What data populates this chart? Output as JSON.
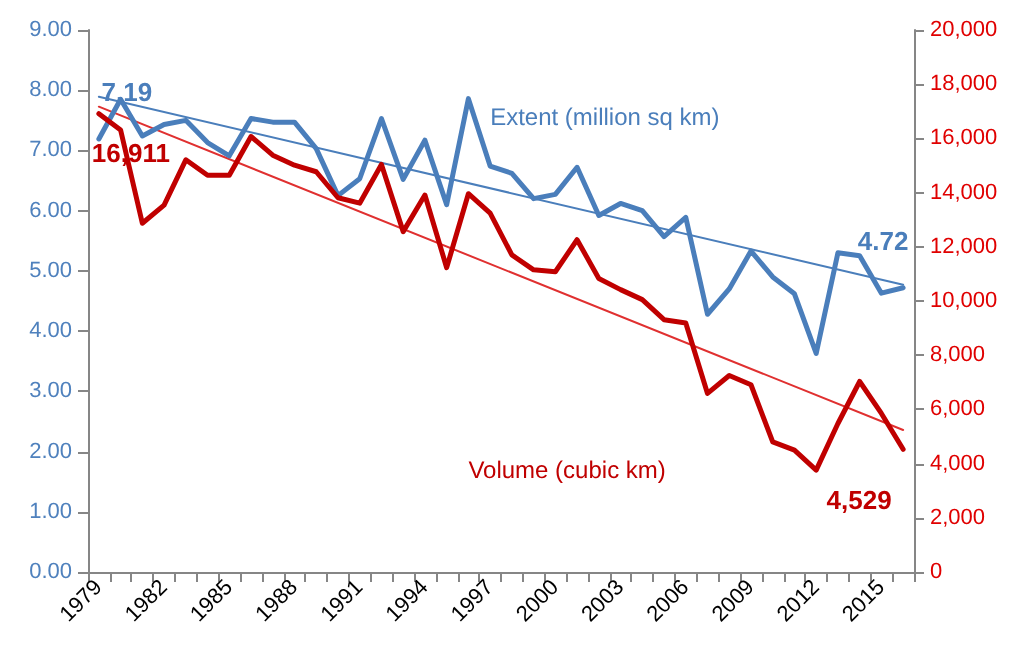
{
  "chart_data": {
    "type": "line",
    "categories": [
      "1979",
      null,
      null,
      "1982",
      null,
      null,
      "1985",
      null,
      null,
      "1988",
      null,
      null,
      "1991",
      null,
      null,
      "1994",
      null,
      null,
      "1997",
      null,
      null,
      "2000",
      null,
      null,
      "2003",
      null,
      null,
      "2006",
      null,
      null,
      "2009",
      null,
      null,
      "2012",
      null,
      null,
      "2015",
      null
    ],
    "series": [
      {
        "name": "Extent (million sq km)",
        "color": "#4a7ebb",
        "values": [
          7.19,
          7.85,
          7.24,
          7.43,
          7.5,
          7.13,
          6.91,
          7.53,
          7.47,
          7.47,
          7.03,
          6.25,
          6.53,
          7.53,
          6.52,
          7.17,
          6.1,
          7.86,
          6.74,
          6.62,
          6.2,
          6.27,
          6.72,
          5.92,
          6.12,
          6.0,
          5.57,
          5.89,
          4.28,
          4.7,
          5.33,
          4.9,
          4.62,
          3.63,
          5.3,
          5.25,
          4.63,
          4.72
        ],
        "value_labels": [
          "7.19",
          null,
          null,
          null,
          null,
          null,
          null,
          null,
          null,
          null,
          null,
          null,
          null,
          null,
          null,
          null,
          null,
          null,
          null,
          null,
          null,
          null,
          null,
          null,
          null,
          null,
          null,
          null,
          null,
          null,
          null,
          null,
          null,
          null,
          null,
          null,
          null,
          "4.72"
        ]
      },
      {
        "name": "Volume (cubic km)",
        "color": "#c00000",
        "axis": "y2",
        "values": [
          16911,
          16310,
          12870,
          13540,
          15210,
          14640,
          14640,
          16070,
          15380,
          15010,
          14770,
          13810,
          13610,
          15040,
          12560,
          13910,
          11230,
          13960,
          13240,
          11700,
          11150,
          11080,
          12260,
          10830,
          10420,
          10050,
          9310,
          9190,
          6590,
          7250,
          6910,
          4800,
          4500,
          3760,
          5480,
          7030,
          5850,
          4529
        ],
        "value_labels": [
          "16,911",
          null,
          null,
          null,
          null,
          null,
          null,
          null,
          null,
          null,
          null,
          null,
          null,
          null,
          null,
          null,
          null,
          null,
          null,
          null,
          null,
          null,
          null,
          null,
          null,
          null,
          null,
          null,
          null,
          null,
          null,
          null,
          null,
          null,
          null,
          null,
          null,
          "4,529"
        ]
      },
      {
        "color": "#4a7ebb",
        "values": [
          7.89,
          null,
          null,
          null,
          null,
          null,
          null,
          null,
          null,
          null,
          null,
          null,
          null,
          null,
          null,
          null,
          null,
          null,
          null,
          null,
          null,
          null,
          null,
          null,
          null,
          null,
          null,
          null,
          null,
          null,
          null,
          null,
          null,
          null,
          null,
          null,
          null,
          4.77
        ]
      },
      {
        "color": "#e03030",
        "axis": "y2",
        "values": [
          17170,
          null,
          null,
          null,
          null,
          null,
          null,
          null,
          null,
          null,
          null,
          null,
          null,
          null,
          null,
          null,
          null,
          null,
          null,
          null,
          null,
          null,
          null,
          null,
          null,
          null,
          null,
          null,
          null,
          null,
          null,
          null,
          null,
          null,
          null,
          null,
          null,
          5240
        ]
      }
    ],
    "ylim": [
      0,
      9
    ],
    "yticks": [
      {
        "value": 0,
        "label": "0.00"
      },
      {
        "value": 1,
        "label": "1.00"
      },
      {
        "value": 2,
        "label": "2.00"
      },
      {
        "value": 3,
        "label": "3.00"
      },
      {
        "value": 4,
        "label": "4.00"
      },
      {
        "value": 5,
        "label": "5.00"
      },
      {
        "value": 6,
        "label": "6.00"
      },
      {
        "value": 7,
        "label": "7.00"
      },
      {
        "value": 8,
        "label": "8.00"
      },
      {
        "value": 9,
        "label": "9.00"
      }
    ],
    "y2lim": [
      0,
      20000
    ],
    "y2ticks": [
      {
        "value": 0,
        "label": "0"
      },
      {
        "value": 2000,
        "label": "2,000"
      },
      {
        "value": 4000,
        "label": "4,000"
      },
      {
        "value": 6000,
        "label": "6,000"
      },
      {
        "value": 8000,
        "label": "8,000"
      },
      {
        "value": 10000,
        "label": "10,000"
      },
      {
        "value": 12000,
        "label": "12,000"
      },
      {
        "value": 14000,
        "label": "14,000"
      },
      {
        "value": 16000,
        "label": "16,000"
      },
      {
        "value": 18000,
        "label": "18,000"
      },
      {
        "value": 20000,
        "label": "20,000"
      }
    ],
    "grid": false,
    "legend": false,
    "marker": "none",
    "line_style": "solid"
  }
}
